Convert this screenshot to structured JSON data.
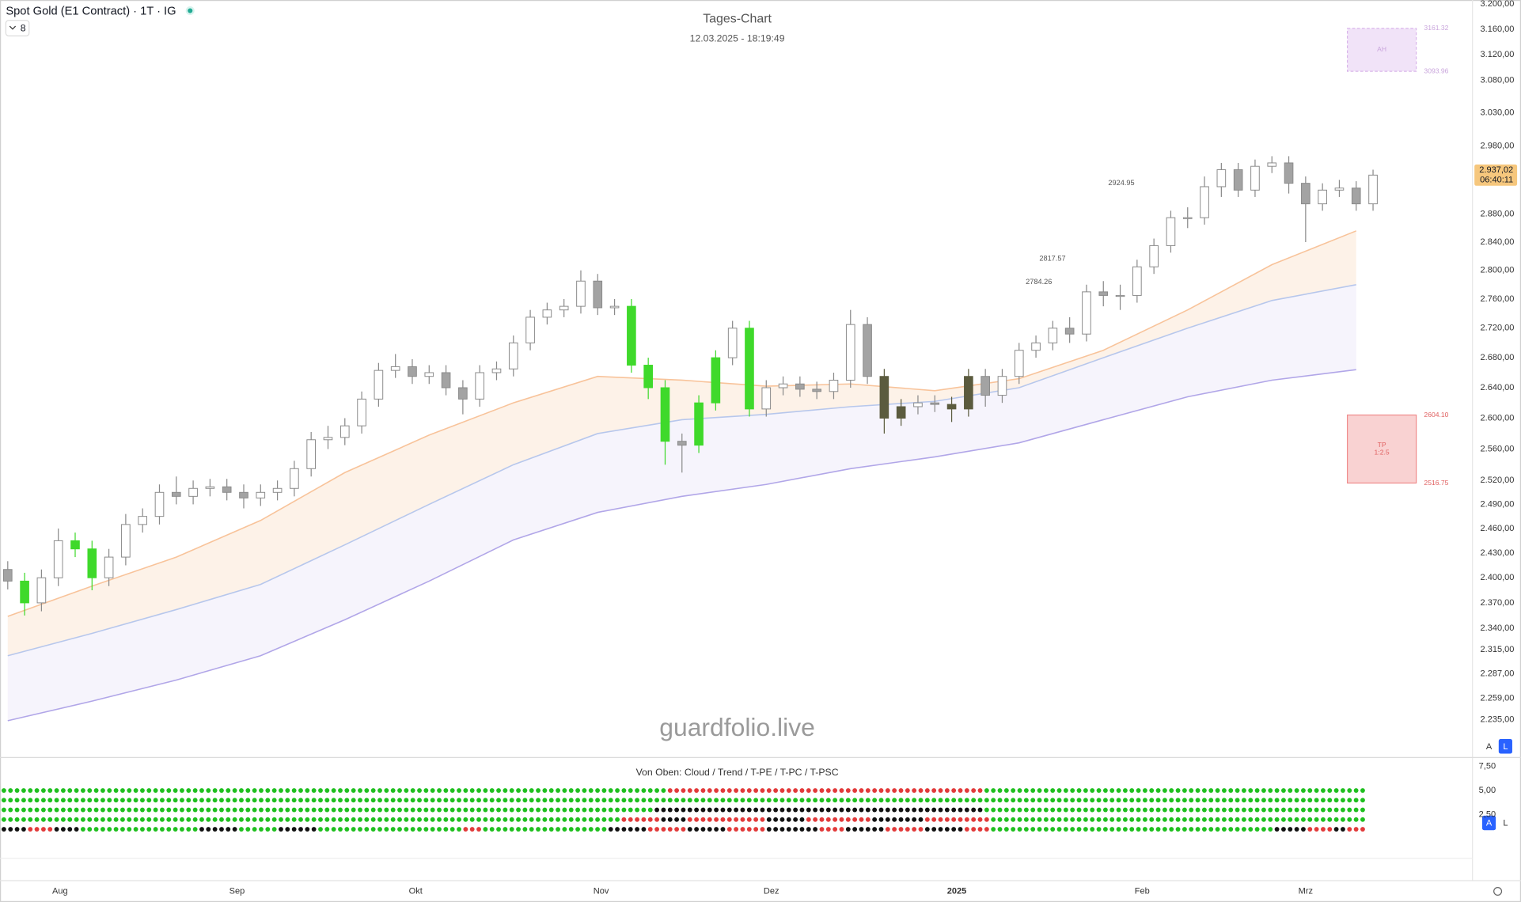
{
  "header": {
    "symbol": "Spot Gold (E1 Contract) · 1T · IG",
    "indicator_count": 8,
    "watermark": "guardfolio.live",
    "buttons": [
      "A",
      "L"
    ]
  },
  "annotations": [
    2924.95,
    2817.57,
    2784.26
  ],
  "chart_data": [
    {
      "type": "candlestick",
      "title": "Tages-Chart",
      "subtitle": "12.03.2025 - 18:19:49",
      "log": true,
      "xlim": [
        -0.46,
        86.9
      ],
      "ylim": [
        2220,
        3205
      ],
      "xticks": [
        {
          "value": 3.1,
          "label": "Aug"
        },
        {
          "value": 13.6,
          "label": "Sep"
        },
        {
          "value": 24.2,
          "label": "Okt"
        },
        {
          "value": 35.2,
          "label": "Nov"
        },
        {
          "value": 45.3,
          "label": "Dez"
        },
        {
          "value": 56.3,
          "label": "2025"
        },
        {
          "value": 67.3,
          "label": "Feb"
        },
        {
          "value": 77.0,
          "label": "Mrz"
        }
      ],
      "yticks": [
        {
          "value": 3200,
          "label": "3.200,00"
        },
        {
          "value": 3160,
          "label": "3.160,00"
        },
        {
          "value": 3120,
          "label": "3.120,00"
        },
        {
          "value": 3080,
          "label": "3.080,00"
        },
        {
          "value": 3030,
          "label": "3.030,00"
        },
        {
          "value": 2980,
          "label": "2.980,00"
        },
        {
          "value": 2880,
          "label": "2.880,00"
        },
        {
          "value": 2840,
          "label": "2.840,00"
        },
        {
          "value": 2800,
          "label": "2.800,00"
        },
        {
          "value": 2760,
          "label": "2.760,00"
        },
        {
          "value": 2720,
          "label": "2.720,00"
        },
        {
          "value": 2680,
          "label": "2.680,00"
        },
        {
          "value": 2640,
          "label": "2.640,00"
        },
        {
          "value": 2600,
          "label": "2.600,00"
        },
        {
          "value": 2560,
          "label": "2.560,00"
        },
        {
          "value": 2520,
          "label": "2.520,00"
        },
        {
          "value": 2490,
          "label": "2.490,00"
        },
        {
          "value": 2460,
          "label": "2.460,00"
        },
        {
          "value": 2430,
          "label": "2.430,00"
        },
        {
          "value": 2400,
          "label": "2.400,00"
        },
        {
          "value": 2370,
          "label": "2.370,00"
        },
        {
          "value": 2340,
          "label": "2.340,00"
        },
        {
          "value": 2315,
          "label": "2.315,00"
        },
        {
          "value": 2287,
          "label": "2.287,00"
        },
        {
          "value": 2259,
          "label": "2.259,00"
        },
        {
          "value": 2235,
          "label": "2.235,00"
        }
      ],
      "last": {
        "value": 2937.02,
        "label": "2.937,02"
      },
      "countdown": "06:40:11",
      "x": [
        0,
        1,
        2,
        3,
        4,
        5,
        6,
        7,
        8,
        9,
        10,
        11,
        12,
        13,
        14,
        15,
        16,
        17,
        18,
        19,
        20,
        21,
        22,
        23,
        24,
        25,
        26,
        27,
        28,
        29,
        30,
        31,
        32,
        33,
        34,
        35,
        36,
        37,
        38,
        39,
        40,
        41,
        42,
        43,
        44,
        45,
        46,
        47,
        48,
        49,
        50,
        51,
        52,
        53,
        54,
        55,
        56,
        57,
        58,
        59,
        60,
        61,
        62,
        63,
        64,
        65,
        66,
        67,
        68,
        69,
        70,
        71,
        72,
        73,
        74,
        75,
        76,
        77,
        78,
        79,
        80,
        81
      ],
      "open": [
        2410,
        2396,
        2370,
        2400,
        2445,
        2435,
        2400,
        2425,
        2465,
        2475,
        2505,
        2500,
        2510,
        2512,
        2505,
        2498,
        2505,
        2510,
        2535,
        2572,
        2575,
        2590,
        2625,
        2663,
        2668,
        2655,
        2660,
        2640,
        2625,
        2660,
        2665,
        2700,
        2735,
        2745,
        2750,
        2785,
        2748,
        2750,
        2670,
        2640,
        2570,
        2565,
        2620,
        2680,
        2720,
        2612,
        2640,
        2645,
        2638,
        2635,
        2650,
        2725,
        2655,
        2600,
        2615,
        2620,
        2618,
        2612,
        2655,
        2630,
        2655,
        2690,
        2700,
        2720,
        2712,
        2770,
        2765,
        2765,
        2805,
        2835,
        2875,
        2875,
        2920,
        2945,
        2915,
        2950,
        2955,
        2925,
        2895,
        2915,
        2918,
        2895
      ],
      "high": [
        2420,
        2406,
        2410,
        2460,
        2455,
        2445,
        2435,
        2478,
        2485,
        2515,
        2525,
        2520,
        2522,
        2522,
        2515,
        2515,
        2520,
        2545,
        2582,
        2590,
        2600,
        2635,
        2673,
        2685,
        2678,
        2670,
        2670,
        2650,
        2670,
        2675,
        2710,
        2745,
        2755,
        2760,
        2800,
        2795,
        2760,
        2760,
        2680,
        2650,
        2580,
        2630,
        2690,
        2730,
        2730,
        2650,
        2655,
        2655,
        2648,
        2660,
        2745,
        2735,
        2665,
        2625,
        2630,
        2630,
        2628,
        2665,
        2665,
        2665,
        2700,
        2710,
        2730,
        2735,
        2780,
        2785,
        2780,
        2815,
        2845,
        2885,
        2890,
        2935,
        2955,
        2955,
        2960,
        2965,
        2965,
        2935,
        2925,
        2930,
        2928,
        2945
      ],
      "low": [
        2386,
        2355,
        2360,
        2390,
        2425,
        2385,
        2390,
        2415,
        2455,
        2465,
        2490,
        2490,
        2500,
        2495,
        2485,
        2488,
        2495,
        2500,
        2525,
        2560,
        2565,
        2580,
        2615,
        2653,
        2645,
        2645,
        2630,
        2605,
        2615,
        2650,
        2655,
        2690,
        2725,
        2735,
        2740,
        2738,
        2738,
        2660,
        2625,
        2540,
        2530,
        2555,
        2610,
        2670,
        2602,
        2602,
        2630,
        2628,
        2625,
        2625,
        2640,
        2645,
        2580,
        2590,
        2605,
        2608,
        2595,
        2602,
        2615,
        2620,
        2645,
        2680,
        2690,
        2700,
        2702,
        2750,
        2745,
        2755,
        2795,
        2825,
        2860,
        2865,
        2905,
        2905,
        2905,
        2940,
        2910,
        2840,
        2885,
        2905,
        2885,
        2885
      ],
      "close": [
        2396,
        2370,
        2400,
        2445,
        2435,
        2400,
        2425,
        2465,
        2475,
        2505,
        2500,
        2510,
        2512,
        2505,
        2498,
        2505,
        2510,
        2535,
        2572,
        2575,
        2590,
        2625,
        2663,
        2668,
        2655,
        2660,
        2640,
        2625,
        2660,
        2665,
        2700,
        2735,
        2745,
        2750,
        2785,
        2748,
        2750,
        2670,
        2640,
        2570,
        2565,
        2620,
        2680,
        2720,
        2612,
        2640,
        2645,
        2638,
        2635,
        2650,
        2725,
        2655,
        2600,
        2615,
        2620,
        2618,
        2612,
        2655,
        2630,
        2655,
        2690,
        2700,
        2720,
        2712,
        2770,
        2765,
        2765,
        2805,
        2835,
        2875,
        2875,
        2920,
        2945,
        2915,
        2950,
        2955,
        2925,
        2895,
        2915,
        2918,
        2895,
        2937.02
      ],
      "candle_colors": [
        null,
        "#3fd92b",
        null,
        null,
        "#3fd92b",
        "#3fd92b",
        null,
        null,
        null,
        null,
        null,
        null,
        null,
        null,
        null,
        null,
        null,
        null,
        null,
        null,
        null,
        null,
        null,
        null,
        null,
        null,
        null,
        null,
        null,
        null,
        null,
        null,
        null,
        null,
        null,
        null,
        null,
        "#3fd92b",
        "#3fd92b",
        "#3fd92b",
        null,
        "#3fd92b",
        "#3fd92b",
        null,
        "#3fd92b",
        null,
        null,
        null,
        null,
        null,
        null,
        null,
        "#5b5b3e",
        "#5b5b3e",
        null,
        null,
        "#5b5b3e",
        "#5b5b3e",
        null,
        null,
        null,
        null,
        null,
        null,
        null,
        null,
        null,
        null,
        null,
        null,
        null,
        null,
        null,
        null,
        null,
        null,
        null,
        null,
        null,
        null,
        null,
        null
      ],
      "up_color": "#ffffff",
      "down_color": "#a3a3a3",
      "wick_color": "#8a8a8a",
      "series": [
        {
          "color": "#f8c39a",
          "x": [
            0,
            5,
            10,
            15,
            20,
            25,
            30,
            35,
            40,
            45,
            50,
            55,
            60,
            65,
            70,
            75,
            80
          ],
          "values": [
            2354,
            2390,
            2425,
            2470,
            2530,
            2578,
            2620,
            2655,
            2650,
            2642,
            2645,
            2636,
            2652,
            2690,
            2745,
            2808,
            2856
          ]
        },
        {
          "color": "#b7c7ec",
          "x": [
            0,
            5,
            10,
            15,
            20,
            25,
            30,
            35,
            40,
            45,
            50,
            55,
            60,
            65,
            70,
            75,
            80
          ],
          "values": [
            2308,
            2334,
            2362,
            2392,
            2440,
            2490,
            2540,
            2580,
            2598,
            2605,
            2615,
            2622,
            2640,
            2680,
            2720,
            2758,
            2780
          ]
        },
        {
          "color": "#b1a6e8",
          "x": [
            0,
            5,
            10,
            15,
            20,
            25,
            30,
            35,
            40,
            45,
            50,
            55,
            60,
            65,
            70,
            75,
            80
          ],
          "values": [
            2234,
            2256,
            2280,
            2308,
            2350,
            2396,
            2446,
            2480,
            2500,
            2515,
            2535,
            2550,
            2568,
            2598,
            2628,
            2650,
            2664
          ]
        }
      ],
      "fills": [
        "#fdf1e6",
        "#f5f3fc"
      ],
      "zones": [
        {
          "label": "AH",
          "top": 3161.32,
          "bottom": 3093.96,
          "color": "#f1e3f8",
          "border": "#d9b5ea",
          "text_color": "#c9a5dc"
        },
        {
          "label": "TP",
          "sublabel": "1:2.5",
          "top": {
            "value": 2604.1,
            "label": "2604.10"
          },
          "bottom": 2516.75,
          "color": "#f9d2d2",
          "border": "#ef8c8c",
          "text_color": "#e06060"
        }
      ]
    },
    {
      "type": "dots",
      "title": "Von Oben: Cloud / Trend / T-PE / T-PC / T-PSC",
      "ylim": [
        -2,
        8.3
      ],
      "yticks": [
        {
          "value": 7.5,
          "label": "7,50"
        },
        {
          "value": 5,
          "label": "5,00"
        },
        {
          "value": 2.5,
          "label": "2,50"
        }
      ],
      "rows": [
        [
          {
            "color": "#1fbf1f",
            "count": 101
          },
          {
            "color": "#e23a3a",
            "count": 48
          },
          {
            "color": "#1fbf1f",
            "count": 58
          }
        ],
        [
          {
            "color": "#1fbf1f",
            "count": 207
          }
        ],
        [
          {
            "color": "#1fbf1f",
            "count": 99
          },
          {
            "color": "#111111",
            "count": 50
          },
          {
            "color": "#1fbf1f",
            "count": 58
          }
        ],
        [
          {
            "color": "#1fbf1f",
            "count": 94
          },
          {
            "color": "#e23a3a",
            "count": 6
          },
          {
            "color": "#111111",
            "count": 4
          },
          {
            "color": "#e23a3a",
            "count": 12
          },
          {
            "color": "#111111",
            "count": 6
          },
          {
            "color": "#e23a3a",
            "count": 10
          },
          {
            "color": "#111111",
            "count": 8
          },
          {
            "color": "#e23a3a",
            "count": 10
          },
          {
            "color": "#1fbf1f",
            "count": 57
          }
        ],
        [
          {
            "color": "#111111",
            "count": 4
          },
          {
            "color": "#e23a3a",
            "count": 4
          },
          {
            "color": "#111111",
            "count": 4
          },
          {
            "color": "#1fbf1f",
            "count": 18
          },
          {
            "color": "#111111",
            "count": 6
          },
          {
            "color": "#1fbf1f",
            "count": 6
          },
          {
            "color": "#111111",
            "count": 6
          },
          {
            "color": "#1fbf1f",
            "count": 22
          },
          {
            "color": "#e23a3a",
            "count": 3
          },
          {
            "color": "#1fbf1f",
            "count": 19
          },
          {
            "color": "#111111",
            "count": 6
          },
          {
            "color": "#e23a3a",
            "count": 6
          },
          {
            "color": "#111111",
            "count": 6
          },
          {
            "color": "#e23a3a",
            "count": 6
          },
          {
            "color": "#111111",
            "count": 8
          },
          {
            "color": "#e23a3a",
            "count": 4
          },
          {
            "color": "#111111",
            "count": 6
          },
          {
            "color": "#e23a3a",
            "count": 6
          },
          {
            "color": "#111111",
            "count": 6
          },
          {
            "color": "#e23a3a",
            "count": 4
          },
          {
            "color": "#1fbf1f",
            "count": 43
          },
          {
            "color": "#111111",
            "count": 5
          },
          {
            "color": "#e23a3a",
            "count": 4
          },
          {
            "color": "#111111",
            "count": 2
          },
          {
            "color": "#e23a3a",
            "count": 3
          }
        ]
      ]
    }
  ]
}
